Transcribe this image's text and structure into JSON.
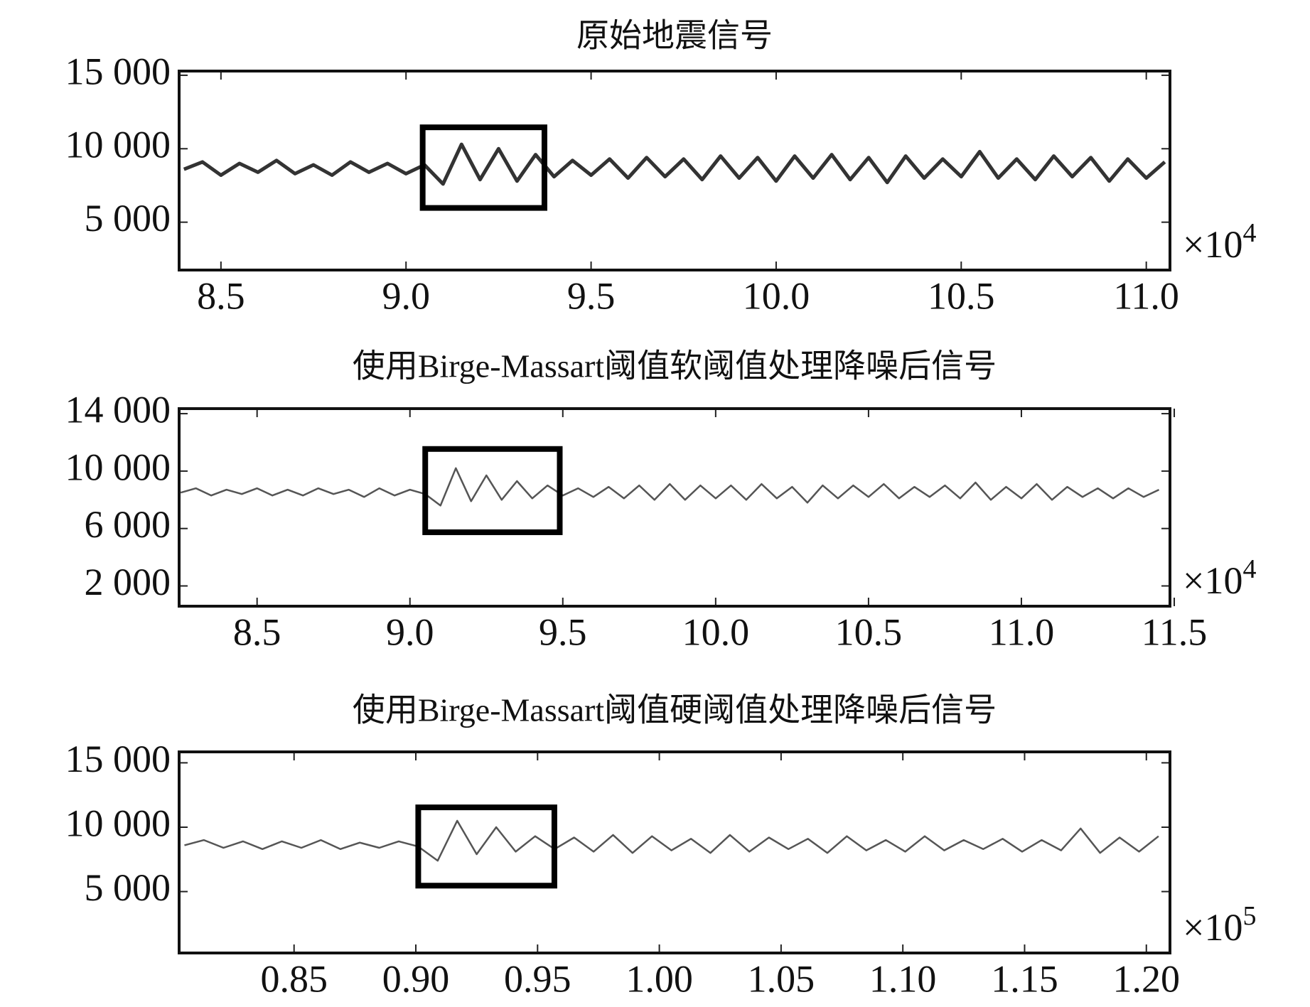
{
  "chart_data": [
    {
      "type": "line",
      "title": "原始地震信号",
      "color": "#333333",
      "x_multiplier": {
        "base": "×10",
        "exponent": "4"
      },
      "x": [
        8.4,
        8.45,
        8.5,
        8.55,
        8.6,
        8.65,
        8.7,
        8.75,
        8.8,
        8.85,
        8.9,
        8.95,
        9.0,
        9.05,
        9.1,
        9.15,
        9.2,
        9.25,
        9.3,
        9.35,
        9.4,
        9.45,
        9.5,
        9.55,
        9.6,
        9.65,
        9.7,
        9.75,
        9.8,
        9.85,
        9.9,
        9.95,
        10.0,
        10.05,
        10.1,
        10.15,
        10.2,
        10.25,
        10.3,
        10.35,
        10.4,
        10.45,
        10.5,
        10.55,
        10.6,
        10.65,
        10.7,
        10.75,
        10.8,
        10.85,
        10.9,
        10.95,
        11.0,
        11.05
      ],
      "values": [
        8600,
        9100,
        8200,
        9000,
        8400,
        9200,
        8300,
        8900,
        8200,
        9100,
        8400,
        9000,
        8300,
        8900,
        7600,
        10300,
        7900,
        10000,
        7800,
        9600,
        8100,
        9200,
        8200,
        9300,
        8000,
        9400,
        8100,
        9300,
        7900,
        9500,
        8000,
        9400,
        7800,
        9500,
        8000,
        9600,
        7900,
        9400,
        7700,
        9500,
        8000,
        9300,
        8100,
        9800,
        8000,
        9300,
        7900,
        9500,
        8100,
        9400,
        7800,
        9300,
        8000,
        9100
      ],
      "highlight": {
        "x": [
          9.045,
          9.374
        ],
        "y": [
          5971,
          11457
        ]
      },
      "xlim": [
        8.387,
        11.064
      ],
      "ylim": [
        1743,
        15286
      ],
      "xticks": [
        8.5,
        {
          "value": 9,
          "label": "9.0"
        },
        9.5,
        {
          "value": 10,
          "label": "10.0"
        },
        10.5,
        {
          "value": 11,
          "label": "11.0"
        }
      ],
      "yticks": [
        {
          "value": 5000,
          "label": "5 000"
        },
        {
          "value": 10000,
          "label": "10 000"
        },
        {
          "value": 15000,
          "label": "15 000"
        }
      ]
    },
    {
      "type": "line",
      "title": "使用Birge-Massart阈值软阈值处理降噪后信号",
      "color": "#555555",
      "x_multiplier": {
        "base": "×10",
        "exponent": "4"
      },
      "x": [
        8.25,
        8.3,
        8.35,
        8.4,
        8.45,
        8.5,
        8.55,
        8.6,
        8.65,
        8.7,
        8.75,
        8.8,
        8.85,
        8.9,
        8.95,
        9.0,
        9.05,
        9.1,
        9.15,
        9.2,
        9.25,
        9.3,
        9.35,
        9.4,
        9.45,
        9.5,
        9.55,
        9.6,
        9.65,
        9.7,
        9.75,
        9.8,
        9.85,
        9.9,
        9.95,
        10.0,
        10.05,
        10.1,
        10.15,
        10.2,
        10.25,
        10.3,
        10.35,
        10.4,
        10.45,
        10.5,
        10.55,
        10.6,
        10.65,
        10.7,
        10.75,
        10.8,
        10.85,
        10.9,
        10.95,
        11.0,
        11.05,
        11.1,
        11.15,
        11.2,
        11.25,
        11.3,
        11.35,
        11.4,
        11.45
      ],
      "values": [
        8500,
        8800,
        8300,
        8700,
        8400,
        8800,
        8300,
        8700,
        8300,
        8800,
        8400,
        8700,
        8200,
        8800,
        8300,
        8700,
        8400,
        7600,
        10200,
        7900,
        9700,
        8000,
        9300,
        8100,
        9000,
        8300,
        8800,
        8200,
        8900,
        8100,
        9000,
        8000,
        9100,
        8000,
        9000,
        8100,
        9000,
        8000,
        9100,
        8100,
        8900,
        7800,
        9000,
        8100,
        9000,
        8200,
        9100,
        8100,
        8900,
        8200,
        9000,
        8100,
        9200,
        8000,
        8900,
        8100,
        9100,
        8000,
        8900,
        8200,
        8800,
        8100,
        8800,
        8200,
        8700
      ],
      "highlight": {
        "x": [
          9.05,
          9.49
        ],
        "y": [
          5740,
          11540
        ]
      },
      "xlim": [
        8.245,
        11.486
      ],
      "ylim": [
        590,
        14350
      ],
      "xticks": [
        8.5,
        {
          "value": 9,
          "label": "9.0"
        },
        9.5,
        {
          "value": 10,
          "label": "10.0"
        },
        10.5,
        {
          "value": 11,
          "label": "11.0"
        },
        11.5
      ],
      "yticks": [
        {
          "value": 2000,
          "label": "2 000"
        },
        {
          "value": 6000,
          "label": "6 000"
        },
        {
          "value": 10000,
          "label": "10 000"
        },
        {
          "value": 14000,
          "label": "14 000"
        }
      ]
    },
    {
      "type": "line",
      "title": "使用Birge-Massart阈值硬阈值处理降噪后信号",
      "color": "#555555",
      "x_multiplier": {
        "base": "×10",
        "exponent": "5"
      },
      "x": [
        0.805,
        0.813,
        0.821,
        0.829,
        0.837,
        0.845,
        0.853,
        0.861,
        0.869,
        0.877,
        0.885,
        0.893,
        0.901,
        0.909,
        0.917,
        0.925,
        0.933,
        0.941,
        0.949,
        0.957,
        0.965,
        0.973,
        0.981,
        0.989,
        0.997,
        1.005,
        1.013,
        1.021,
        1.029,
        1.037,
        1.045,
        1.053,
        1.061,
        1.069,
        1.077,
        1.085,
        1.093,
        1.101,
        1.109,
        1.117,
        1.125,
        1.133,
        1.141,
        1.149,
        1.157,
        1.165,
        1.173,
        1.181,
        1.189,
        1.197,
        1.205
      ],
      "values": [
        8600,
        9000,
        8400,
        8900,
        8300,
        8900,
        8400,
        9000,
        8300,
        8800,
        8400,
        8900,
        8500,
        7400,
        10500,
        7900,
        10000,
        8100,
        9300,
        8300,
        9200,
        8100,
        9400,
        8000,
        9300,
        8200,
        9100,
        8000,
        9400,
        8100,
        9200,
        8300,
        9100,
        8000,
        9300,
        8200,
        9000,
        8100,
        9300,
        8200,
        9000,
        8300,
        9100,
        8100,
        9000,
        8200,
        9900,
        8000,
        9200,
        8100,
        9300
      ],
      "highlight": {
        "x": [
          0.901,
          0.9569
        ],
        "y": [
          5460,
          11540
        ]
      },
      "xlim": [
        0.8028,
        1.2097
      ],
      "ylim": [
        230,
        15850
      ],
      "xticks": [
        0.85,
        {
          "value": 0.9,
          "label": "0.90"
        },
        0.95,
        {
          "value": 1,
          "label": "1.00"
        },
        1.05,
        {
          "value": 1.1,
          "label": "1.10"
        },
        1.15,
        {
          "value": 1.2,
          "label": "1.20"
        }
      ],
      "yticks": [
        {
          "value": 5000,
          "label": "5 000"
        },
        {
          "value": 10000,
          "label": "10 000"
        },
        {
          "value": 15000,
          "label": "15 000"
        }
      ]
    }
  ]
}
